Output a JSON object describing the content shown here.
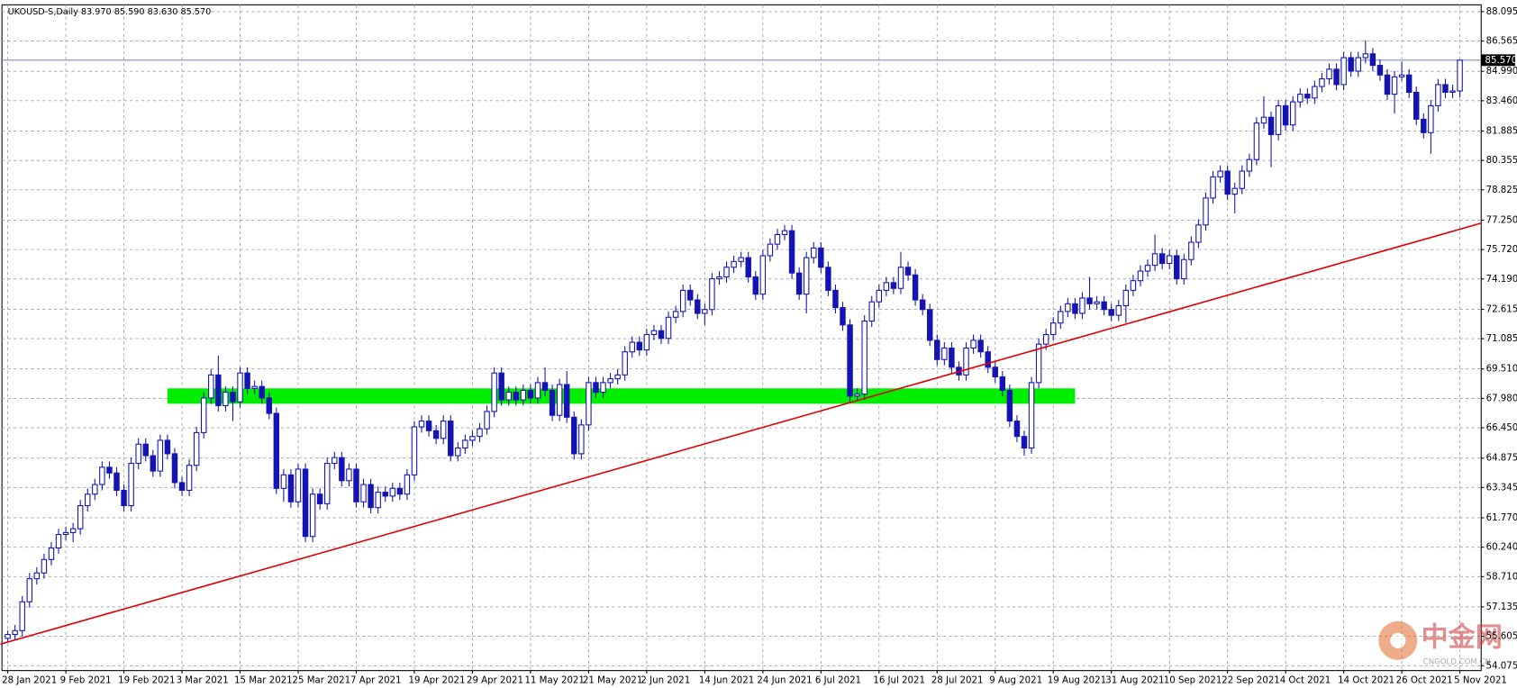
{
  "chart_data": {
    "type": "candlestick",
    "title": "UKOUSD-S,Daily  83.970 85.590 83.630 85.570",
    "open": [
      55.5,
      55.7,
      55.9,
      57.4,
      58.6,
      58.9,
      59.6,
      60.2,
      60.9,
      61.0,
      61.2,
      62.4,
      63.0,
      63.5,
      64.4,
      64.1,
      63.2,
      62.4,
      64.6,
      65.6,
      65.0,
      64.2,
      65.8,
      65.1,
      63.6,
      63.2,
      64.5,
      66.2,
      68.0,
      69.2,
      67.6,
      68.3,
      67.8,
      69.3,
      68.5,
      68.6,
      68.0,
      67.2,
      63.3,
      64.0,
      62.6,
      64.3,
      60.8,
      63.0,
      62.5,
      64.6,
      64.9,
      63.7,
      64.3,
      62.6,
      63.5,
      62.3,
      63.1,
      62.9,
      63.3,
      63.0,
      64.0,
      66.5,
      66.8,
      66.3,
      65.9,
      66.8,
      65.0,
      65.4,
      65.8,
      66.0,
      66.4,
      67.3,
      69.3,
      67.9,
      68.3,
      67.9,
      68.4,
      68.0,
      68.8,
      68.4,
      67.1,
      68.7,
      67.0,
      65.1,
      66.6,
      68.8,
      68.3,
      68.8,
      69.0,
      69.2,
      70.4,
      70.9,
      70.5,
      71.3,
      71.5,
      71.1,
      72.2,
      72.5,
      73.6,
      73.1,
      72.4,
      72.6,
      74.2,
      74.3,
      74.8,
      75.1,
      75.3,
      74.3,
      73.4,
      75.4,
      76.0,
      76.5,
      76.7,
      74.5,
      73.4,
      75.3,
      75.8,
      74.8,
      73.6,
      72.7,
      71.8,
      68.1,
      68.2,
      72.0,
      73.0,
      73.6,
      74.0,
      73.7,
      74.8,
      74.4,
      73.1,
      72.6,
      71.0,
      70.0,
      70.6,
      69.6,
      69.2,
      70.6,
      71.0,
      70.4,
      69.6,
      69.1,
      68.4,
      66.8,
      66.0,
      65.4,
      68.8,
      70.8,
      71.3,
      71.9,
      72.5,
      72.9,
      72.4,
      73.2,
      72.9,
      73.0,
      72.6,
      72.3,
      72.8,
      73.6,
      74.1,
      74.6,
      74.9,
      75.5,
      75.0,
      75.4,
      74.2,
      75.2,
      76.1,
      77.0,
      78.4,
      79.5,
      79.8,
      78.6,
      78.9,
      79.8,
      80.4,
      82.3,
      82.6,
      81.7,
      83.2,
      82.2,
      83.4,
      83.8,
      83.6,
      84.2,
      84.6,
      85.1,
      84.3,
      85.7,
      85.0,
      85.7,
      85.9,
      85.3,
      84.8,
      83.8,
      84.7,
      84.8,
      83.9,
      82.5,
      81.8,
      83.2,
      84.3,
      83.9,
      83.97
    ],
    "high": [
      55.9,
      56.2,
      57.7,
      58.9,
      59.2,
      59.9,
      60.5,
      61.2,
      61.3,
      61.5,
      62.7,
      63.3,
      63.8,
      64.7,
      64.7,
      64.4,
      63.5,
      64.9,
      65.9,
      65.9,
      65.3,
      66.1,
      66.1,
      65.4,
      63.9,
      64.8,
      66.5,
      68.3,
      69.5,
      70.2,
      68.6,
      68.6,
      69.6,
      69.6,
      68.9,
      68.9,
      68.3,
      67.5,
      64.3,
      64.3,
      64.6,
      64.6,
      63.3,
      63.3,
      64.9,
      65.2,
      65.2,
      64.6,
      64.6,
      63.8,
      63.8,
      63.4,
      63.4,
      63.6,
      63.6,
      64.3,
      66.8,
      67.1,
      67.1,
      66.6,
      67.1,
      67.1,
      65.7,
      66.1,
      66.3,
      66.7,
      67.6,
      69.6,
      69.6,
      68.6,
      68.6,
      68.7,
      68.7,
      69.1,
      69.6,
      68.7,
      69.0,
      69.4,
      67.3,
      66.9,
      69.1,
      69.1,
      69.1,
      69.3,
      69.5,
      70.7,
      71.2,
      71.2,
      71.6,
      71.8,
      71.8,
      72.5,
      72.8,
      73.9,
      73.9,
      73.4,
      72.9,
      74.5,
      74.6,
      75.1,
      75.4,
      75.6,
      75.6,
      74.6,
      75.7,
      76.3,
      76.8,
      77.0,
      77.0,
      74.8,
      75.6,
      76.1,
      76.1,
      75.1,
      73.9,
      73.0,
      72.1,
      68.5,
      72.3,
      73.3,
      73.9,
      74.3,
      74.3,
      75.6,
      75.1,
      74.7,
      73.4,
      72.9,
      71.3,
      70.9,
      70.9,
      69.9,
      70.9,
      71.3,
      71.3,
      70.7,
      69.9,
      69.4,
      68.7,
      67.1,
      66.3,
      69.1,
      71.1,
      71.6,
      72.2,
      72.8,
      73.2,
      73.2,
      73.5,
      74.3,
      73.3,
      73.3,
      72.9,
      73.1,
      73.9,
      74.4,
      74.9,
      75.2,
      76.5,
      75.8,
      75.7,
      75.7,
      75.5,
      76.4,
      77.3,
      78.7,
      79.8,
      80.1,
      80.1,
      79.2,
      80.1,
      80.7,
      82.6,
      83.7,
      82.9,
      83.5,
      83.5,
      83.7,
      84.1,
      84.1,
      84.5,
      84.9,
      85.4,
      85.4,
      86.0,
      86.0,
      86.0,
      86.6,
      86.2,
      85.6,
      85.1,
      85.0,
      85.5,
      85.1,
      84.2,
      82.8,
      83.5,
      84.6,
      84.6,
      84.3,
      85.59
    ],
    "low": [
      55.3,
      55.4,
      55.6,
      57.1,
      58.3,
      58.6,
      59.3,
      59.9,
      60.6,
      60.5,
      60.9,
      62.1,
      62.7,
      63.2,
      63.8,
      62.9,
      62.1,
      62.1,
      64.3,
      64.7,
      63.9,
      63.9,
      64.8,
      63.3,
      62.9,
      62.9,
      64.2,
      65.9,
      67.7,
      67.3,
      67.3,
      66.8,
      67.5,
      68.2,
      68.2,
      67.7,
      66.9,
      63.0,
      62.6,
      62.3,
      62.3,
      60.5,
      60.5,
      62.2,
      62.2,
      64.3,
      63.4,
      63.4,
      62.3,
      62.3,
      62.0,
      62.0,
      62.6,
      62.6,
      62.7,
      62.7,
      63.7,
      66.2,
      66.0,
      65.6,
      65.6,
      64.7,
      64.7,
      65.1,
      65.5,
      65.7,
      66.1,
      67.0,
      67.6,
      67.6,
      67.6,
      67.6,
      67.7,
      67.7,
      68.1,
      66.8,
      66.8,
      66.7,
      64.8,
      64.8,
      66.3,
      68.0,
      68.0,
      68.5,
      68.7,
      68.9,
      70.1,
      70.2,
      70.2,
      71.0,
      70.8,
      70.8,
      71.9,
      72.2,
      72.8,
      72.1,
      71.8,
      72.3,
      73.9,
      74.0,
      74.5,
      74.8,
      74.0,
      73.1,
      73.1,
      75.1,
      75.7,
      76.2,
      74.2,
      73.1,
      72.4,
      75.0,
      74.5,
      73.3,
      72.4,
      71.5,
      67.8,
      67.9,
      67.9,
      71.7,
      72.7,
      73.3,
      73.4,
      73.4,
      74.1,
      72.8,
      72.3,
      70.7,
      69.7,
      69.7,
      69.3,
      68.9,
      68.9,
      70.3,
      70.1,
      69.3,
      68.8,
      68.1,
      66.5,
      65.7,
      65.0,
      65.1,
      68.5,
      70.5,
      71.0,
      71.6,
      72.2,
      72.1,
      72.1,
      72.6,
      72.6,
      72.3,
      72.0,
      72.0,
      71.9,
      73.3,
      73.8,
      74.3,
      74.6,
      74.7,
      74.7,
      73.9,
      73.9,
      74.9,
      75.8,
      76.7,
      78.1,
      79.2,
      78.3,
      77.6,
      78.6,
      79.5,
      80.1,
      82.0,
      80.0,
      81.4,
      81.9,
      81.9,
      83.1,
      83.3,
      83.3,
      83.9,
      84.3,
      84.0,
      84.0,
      84.7,
      84.7,
      85.4,
      85.0,
      84.5,
      83.5,
      82.8,
      84.5,
      83.6,
      82.2,
      81.5,
      80.7,
      82.9,
      83.6,
      83.6,
      83.63
    ],
    "close": [
      55.7,
      55.9,
      57.4,
      58.6,
      58.9,
      59.6,
      60.2,
      60.9,
      61.0,
      61.2,
      62.4,
      63.0,
      63.5,
      64.4,
      64.1,
      63.2,
      62.4,
      64.6,
      65.6,
      65.0,
      64.2,
      65.8,
      65.1,
      63.6,
      63.2,
      64.5,
      66.2,
      68.0,
      69.2,
      67.6,
      68.3,
      67.8,
      69.3,
      68.5,
      68.6,
      68.0,
      67.2,
      63.3,
      64.0,
      62.6,
      64.3,
      60.8,
      63.0,
      62.5,
      64.6,
      64.9,
      63.7,
      64.3,
      62.6,
      63.5,
      62.3,
      63.1,
      62.9,
      63.3,
      63.0,
      64.0,
      66.5,
      66.8,
      66.3,
      65.9,
      66.8,
      65.0,
      65.4,
      65.8,
      66.0,
      66.4,
      67.3,
      69.3,
      67.9,
      68.3,
      67.9,
      68.4,
      68.0,
      68.8,
      68.4,
      67.1,
      68.7,
      67.0,
      65.1,
      66.6,
      68.8,
      68.3,
      68.8,
      69.0,
      69.2,
      70.4,
      70.9,
      70.5,
      71.3,
      71.5,
      71.1,
      72.2,
      72.5,
      73.6,
      73.1,
      72.4,
      72.6,
      74.2,
      74.3,
      74.8,
      75.1,
      75.3,
      74.3,
      73.4,
      75.4,
      76.0,
      76.5,
      76.7,
      74.5,
      73.4,
      75.3,
      75.8,
      74.8,
      73.6,
      72.7,
      71.8,
      68.1,
      68.2,
      72.0,
      73.0,
      73.6,
      74.0,
      73.7,
      74.8,
      74.4,
      73.1,
      72.6,
      71.0,
      70.0,
      70.6,
      69.6,
      69.2,
      70.6,
      71.0,
      70.4,
      69.6,
      69.1,
      68.4,
      66.8,
      66.0,
      65.4,
      68.8,
      70.8,
      71.3,
      71.9,
      72.5,
      72.9,
      72.4,
      73.2,
      72.9,
      73.0,
      72.6,
      72.3,
      72.8,
      73.6,
      74.1,
      74.6,
      74.9,
      75.5,
      75.0,
      75.4,
      74.2,
      75.2,
      76.1,
      77.0,
      78.4,
      79.5,
      79.8,
      78.6,
      78.9,
      79.8,
      80.4,
      82.3,
      82.6,
      81.7,
      83.2,
      82.2,
      83.4,
      83.8,
      83.6,
      84.2,
      84.6,
      85.1,
      84.3,
      85.7,
      85.0,
      85.7,
      85.9,
      85.3,
      84.8,
      83.8,
      84.7,
      84.8,
      83.9,
      82.5,
      81.8,
      83.2,
      84.3,
      83.9,
      83.97,
      85.57
    ],
    "ylim": [
      54.075,
      88.095
    ],
    "yticks": [
      {
        "value": 88.095,
        "label": "88.095"
      },
      {
        "value": 86.565,
        "label": "86.565"
      },
      {
        "value": 84.99,
        "label": "84.990"
      },
      {
        "value": 83.46,
        "label": "83.460"
      },
      {
        "value": 81.885,
        "label": "81.885"
      },
      {
        "value": 80.355,
        "label": "80.355"
      },
      {
        "value": 78.825,
        "label": "78.825"
      },
      {
        "value": 77.25,
        "label": "77.250"
      },
      {
        "value": 75.72,
        "label": "75.720"
      },
      {
        "value": 74.19,
        "label": "74.190"
      },
      {
        "value": 72.615,
        "label": "72.615"
      },
      {
        "value": 71.085,
        "label": "71.085"
      },
      {
        "value": 69.51,
        "label": "69.510"
      },
      {
        "value": 67.98,
        "label": "67.980"
      },
      {
        "value": 66.45,
        "label": "66.450"
      },
      {
        "value": 64.875,
        "label": "64.875"
      },
      {
        "value": 63.345,
        "label": "63.345"
      },
      {
        "value": 61.77,
        "label": "61.770"
      },
      {
        "value": 60.24,
        "label": "60.240"
      },
      {
        "value": 58.71,
        "label": "58.710"
      },
      {
        "value": 57.135,
        "label": "57.135"
      },
      {
        "value": 55.605,
        "label": "55.605"
      },
      {
        "value": 54.075,
        "label": "54.075"
      }
    ],
    "xticks": [
      {
        "value": 0,
        "label": "28 Jan 2021"
      },
      {
        "value": 8,
        "label": "9 Feb 2021"
      },
      {
        "value": 16,
        "label": "19 Feb 2021"
      },
      {
        "value": 24,
        "label": "3 Mar 2021"
      },
      {
        "value": 32,
        "label": "15 Mar 2021"
      },
      {
        "value": 40,
        "label": "25 Mar 2021"
      },
      {
        "value": 48,
        "label": "7 Apr 2021"
      },
      {
        "value": 56,
        "label": "19 Apr 2021"
      },
      {
        "value": 64,
        "label": "29 Apr 2021"
      },
      {
        "value": 72,
        "label": "11 May 2021"
      },
      {
        "value": 80,
        "label": "21 May 2021"
      },
      {
        "value": 88,
        "label": "2 Jun 2021"
      },
      {
        "value": 96,
        "label": "14 Jun 2021"
      },
      {
        "value": 104,
        "label": "24 Jun 2021"
      },
      {
        "value": 112,
        "label": "6 Jul 2021"
      },
      {
        "value": 120,
        "label": "16 Jul 2021"
      },
      {
        "value": 128,
        "label": "28 Jul 2021"
      },
      {
        "value": 136,
        "label": "9 Aug 2021"
      },
      {
        "value": 144,
        "label": "19 Aug 2021"
      },
      {
        "value": 152,
        "label": "31 Aug 2021"
      },
      {
        "value": 160,
        "label": "10 Sep 2021"
      },
      {
        "value": 168,
        "label": "22 Sep 2021"
      },
      {
        "value": 176,
        "label": "4 Oct 2021"
      },
      {
        "value": 184,
        "label": "14 Oct 2021"
      },
      {
        "value": 192,
        "label": "26 Oct 2021"
      },
      {
        "value": 200,
        "label": "5 Nov 2021"
      }
    ],
    "grid": true,
    "colors": {
      "up": "#ffffff",
      "down": "#1414b4",
      "outline": "#1414b4"
    },
    "last_price": {
      "value": 85.57,
      "label": "85.570",
      "color": "#7f8fb0"
    },
    "zone": {
      "x": [
        22,
        147
      ],
      "y": [
        67.7,
        68.5
      ],
      "color": "#00ee00"
    },
    "trendline": {
      "x": [
        -1,
        203
      ],
      "y": [
        55.2,
        77.1
      ],
      "color": "#e00000"
    },
    "watermark": {
      "title": "中金网",
      "subtitle": "CNGOLD.COM.CN"
    }
  }
}
